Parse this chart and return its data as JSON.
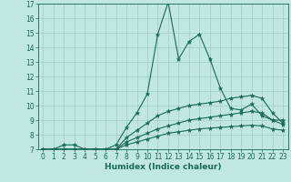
{
  "xlabel": "Humidex (Indice chaleur)",
  "ylabel": "",
  "background_color": "#c0e8e0",
  "grid_color": "#a0ccc4",
  "line_color": "#1a6858",
  "xlim": [
    -0.5,
    23.5
  ],
  "ylim": [
    7,
    17
  ],
  "xticks": [
    0,
    1,
    2,
    3,
    4,
    5,
    6,
    7,
    8,
    9,
    10,
    11,
    12,
    13,
    14,
    15,
    16,
    17,
    18,
    19,
    20,
    21,
    22,
    23
  ],
  "yticks": [
    7,
    8,
    9,
    10,
    11,
    12,
    13,
    14,
    15,
    16,
    17
  ],
  "series": [
    {
      "x": [
        0,
        1,
        2,
        3,
        4,
        5,
        6,
        7,
        8,
        9,
        10,
        11,
        12,
        13,
        14,
        15,
        16,
        17,
        18,
        19,
        20,
        21,
        22,
        23
      ],
      "y": [
        7,
        7,
        7.3,
        7.3,
        7,
        7,
        7,
        7.3,
        8.5,
        9.5,
        10.8,
        14.9,
        17.1,
        13.2,
        14.4,
        14.9,
        13.2,
        11.2,
        9.8,
        9.7,
        10.1,
        9.3,
        9.0,
        9.0
      ]
    },
    {
      "x": [
        0,
        1,
        2,
        3,
        4,
        5,
        6,
        7,
        8,
        9,
        10,
        11,
        12,
        13,
        14,
        15,
        16,
        17,
        18,
        19,
        20,
        21,
        22,
        23
      ],
      "y": [
        7,
        7,
        7,
        7,
        7,
        7,
        7,
        7,
        7.8,
        8.3,
        8.8,
        9.3,
        9.6,
        9.8,
        10.0,
        10.1,
        10.2,
        10.3,
        10.5,
        10.6,
        10.7,
        10.5,
        9.5,
        8.8
      ]
    },
    {
      "x": [
        0,
        1,
        2,
        3,
        4,
        5,
        6,
        7,
        8,
        9,
        10,
        11,
        12,
        13,
        14,
        15,
        16,
        17,
        18,
        19,
        20,
        21,
        22,
        23
      ],
      "y": [
        7,
        7,
        7,
        7,
        7,
        7,
        7,
        7,
        7.5,
        7.8,
        8.1,
        8.4,
        8.6,
        8.8,
        9.0,
        9.1,
        9.2,
        9.3,
        9.4,
        9.5,
        9.6,
        9.5,
        9.0,
        8.7
      ]
    },
    {
      "x": [
        0,
        1,
        2,
        3,
        4,
        5,
        6,
        7,
        8,
        9,
        10,
        11,
        12,
        13,
        14,
        15,
        16,
        17,
        18,
        19,
        20,
        21,
        22,
        23
      ],
      "y": [
        7,
        7,
        7,
        7,
        7,
        7,
        7,
        7,
        7.3,
        7.5,
        7.7,
        7.9,
        8.1,
        8.2,
        8.3,
        8.4,
        8.45,
        8.5,
        8.55,
        8.6,
        8.65,
        8.6,
        8.4,
        8.3
      ]
    }
  ]
}
